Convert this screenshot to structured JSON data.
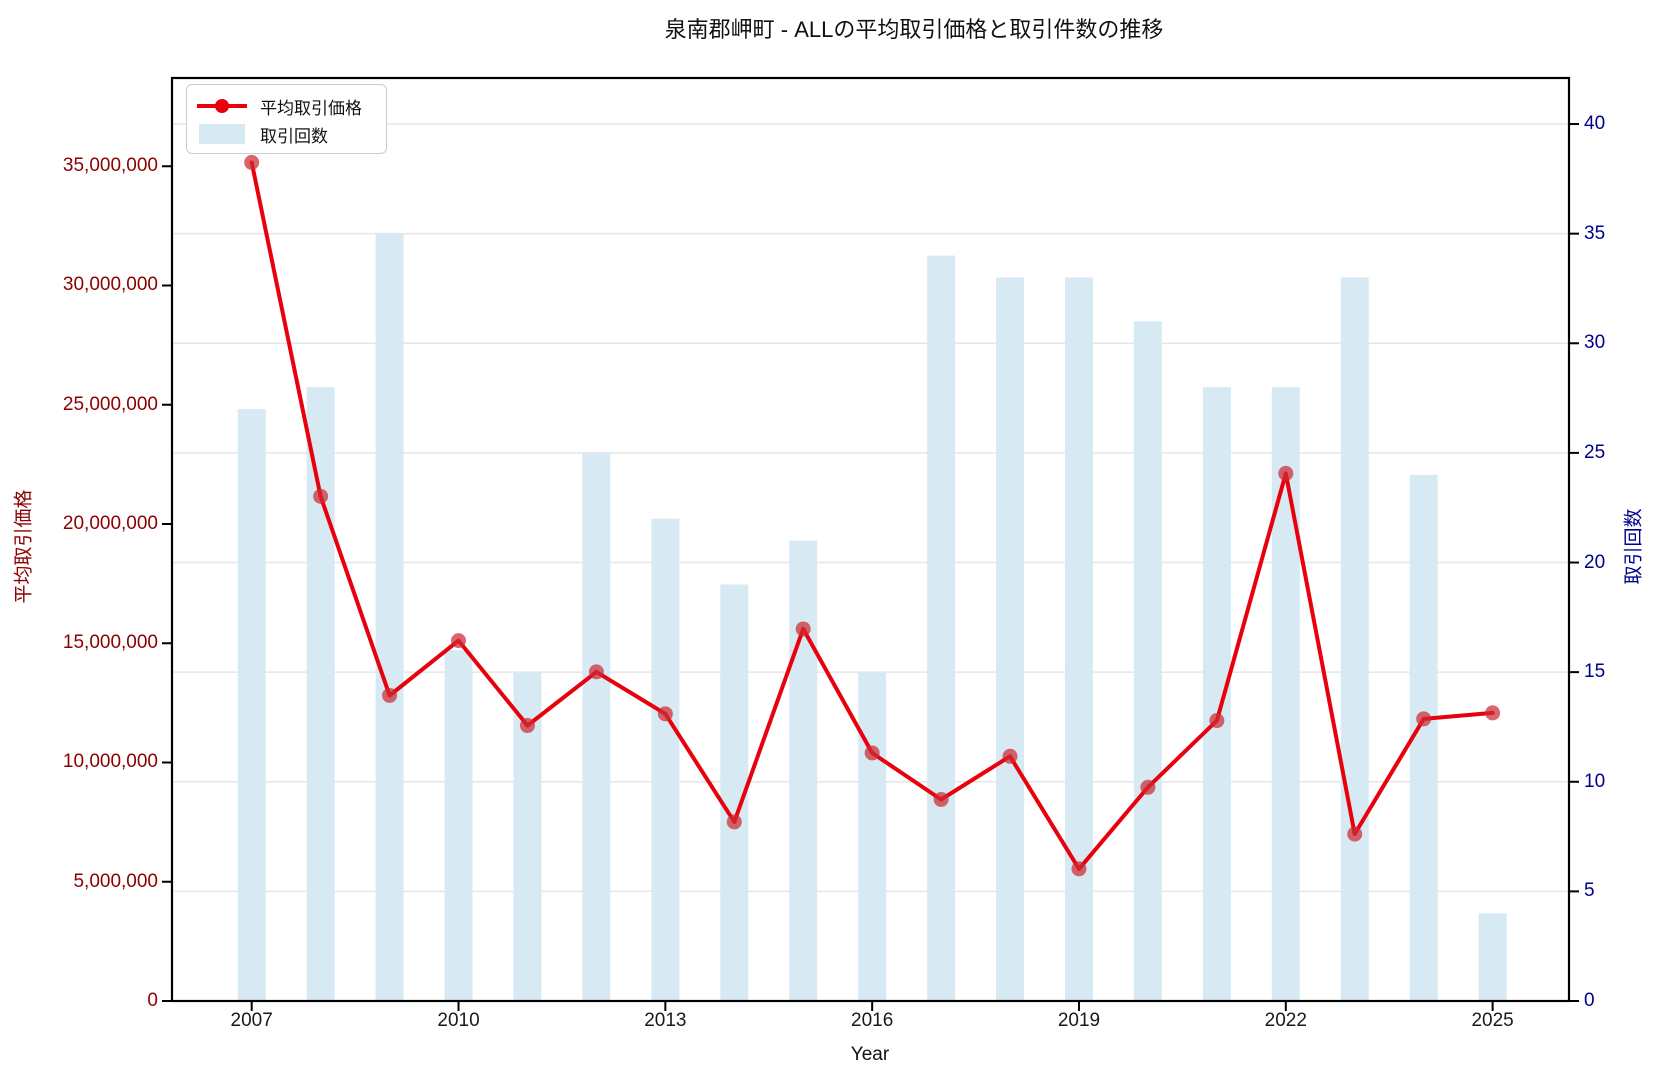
{
  "chart_data": {
    "type": "line+bar",
    "title": "泉南郡岬町 - ALLの平均取引価格と取引件数の推移",
    "xlabel": "Year",
    "ylabel_left": "平均取引価格",
    "ylabel_right": "取引回数",
    "x": [
      2007,
      2008,
      2009,
      2010,
      2011,
      2012,
      2013,
      2014,
      2015,
      2016,
      2017,
      2018,
      2019,
      2020,
      2021,
      2022,
      2023,
      2024,
      2025
    ],
    "series": [
      {
        "name": "平均取引価格",
        "type": "line",
        "axis": "left",
        "color": "#e8000d",
        "marker_color": "#cc2a33",
        "values": [
          35160000,
          21160000,
          12810000,
          15110000,
          11550000,
          13800000,
          12040000,
          7510000,
          15600000,
          10400000,
          8450000,
          10260000,
          5540000,
          8960000,
          11760000,
          22120000,
          7000000,
          11830000,
          12080000
        ]
      },
      {
        "name": "取引回数",
        "type": "bar",
        "axis": "right",
        "color": "#d7eaf3",
        "values": [
          27,
          28,
          35,
          16,
          15,
          25,
          22,
          19,
          21,
          15,
          34,
          33,
          33,
          31,
          28,
          28,
          33,
          24,
          4
        ]
      }
    ],
    "left_axis": {
      "color": "#8B0000",
      "range": [
        0,
        38700000
      ],
      "tick_values": [
        0,
        5000000,
        10000000,
        15000000,
        20000000,
        25000000,
        30000000,
        35000000
      ],
      "tick_labels": [
        "0",
        "5,000,000",
        "10,000,000",
        "15,000,000",
        "20,000,000",
        "25,000,000",
        "30,000,000",
        "35,000,000"
      ]
    },
    "right_axis": {
      "color": "#00008B",
      "range": [
        0,
        42.1
      ],
      "tick_values": [
        0,
        5,
        10,
        15,
        20,
        25,
        30,
        35,
        40
      ],
      "tick_labels": [
        "0",
        "5",
        "10",
        "15",
        "20",
        "25",
        "30",
        "35",
        "40"
      ]
    },
    "x_axis": {
      "tick_values": [
        2007,
        2010,
        2013,
        2016,
        2019,
        2022,
        2025
      ],
      "tick_labels": [
        "2007",
        "2010",
        "2013",
        "2016",
        "2019",
        "2022",
        "2025"
      ]
    },
    "grid": {
      "show": true,
      "orientation": "horizontal",
      "source": "right_axis",
      "color": "#e6e6e6"
    },
    "legend": {
      "position": "upper-left",
      "entries": [
        "平均取引価格",
        "取引回数"
      ]
    }
  }
}
